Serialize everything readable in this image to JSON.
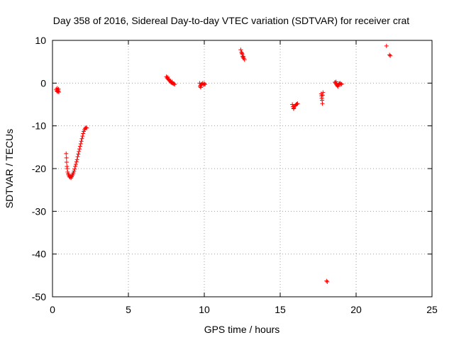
{
  "chart_data": {
    "type": "scatter",
    "title": "Day 358 of 2016, Sidereal Day-to-day VTEC variation (SDTVAR) for receiver crat",
    "xlabel": "GPS time / hours",
    "ylabel": "SDTVAR / TECUs",
    "xlim": [
      0,
      25
    ],
    "ylim": [
      -50,
      10
    ],
    "xticks": [
      "0",
      "5",
      "10",
      "15",
      "20",
      "25"
    ],
    "yticks": [
      "10",
      "0",
      "-10",
      "-20",
      "-30",
      "-40",
      "-50"
    ],
    "grid": true,
    "marker": "+",
    "color": "#ff0000",
    "series": [
      {
        "name": "SDTVAR",
        "points": [
          [
            0.25,
            -1.5
          ],
          [
            0.28,
            -1.8
          ],
          [
            0.3,
            -1.2
          ],
          [
            0.32,
            -2.0
          ],
          [
            0.35,
            -1.6
          ],
          [
            0.38,
            -1.9
          ],
          [
            0.4,
            -1.4
          ],
          [
            0.42,
            -2.1
          ],
          [
            0.9,
            -16.5
          ],
          [
            0.92,
            -17.5
          ],
          [
            0.93,
            -18.5
          ],
          [
            0.95,
            -19.5
          ],
          [
            0.97,
            -20.0
          ],
          [
            1.0,
            -20.8
          ],
          [
            1.03,
            -21.2
          ],
          [
            1.06,
            -21.5
          ],
          [
            1.1,
            -21.8
          ],
          [
            1.14,
            -22.0
          ],
          [
            1.18,
            -21.8
          ],
          [
            1.22,
            -22.2
          ],
          [
            1.26,
            -21.9
          ],
          [
            1.3,
            -21.6
          ],
          [
            1.34,
            -21.3
          ],
          [
            1.38,
            -21.0
          ],
          [
            1.42,
            -20.6
          ],
          [
            1.46,
            -20.1
          ],
          [
            1.5,
            -19.5
          ],
          [
            1.54,
            -19.0
          ],
          [
            1.58,
            -18.4
          ],
          [
            1.62,
            -17.9
          ],
          [
            1.66,
            -17.2
          ],
          [
            1.7,
            -16.6
          ],
          [
            1.74,
            -16.0
          ],
          [
            1.78,
            -15.4
          ],
          [
            1.82,
            -14.8
          ],
          [
            1.86,
            -14.2
          ],
          [
            1.9,
            -13.6
          ],
          [
            1.94,
            -13.0
          ],
          [
            1.98,
            -12.4
          ],
          [
            2.02,
            -11.8
          ],
          [
            2.06,
            -11.3
          ],
          [
            2.1,
            -10.9
          ],
          [
            2.15,
            -10.6
          ],
          [
            2.2,
            -10.4
          ],
          [
            2.25,
            -10.5
          ],
          [
            7.5,
            1.5
          ],
          [
            7.55,
            1.2
          ],
          [
            7.6,
            1.0
          ],
          [
            7.65,
            0.8
          ],
          [
            7.7,
            0.6
          ],
          [
            7.75,
            0.4
          ],
          [
            7.8,
            0.2
          ],
          [
            7.85,
            0.1
          ],
          [
            7.9,
            0.0
          ],
          [
            7.95,
            -0.1
          ],
          [
            8.0,
            -0.2
          ],
          [
            8.05,
            -0.3
          ],
          [
            7.58,
            1.4
          ],
          [
            7.68,
            0.9
          ],
          [
            7.78,
            0.5
          ],
          [
            7.88,
            0.3
          ],
          [
            9.7,
            0.0
          ],
          [
            9.72,
            -0.8
          ],
          [
            9.75,
            -0.5
          ],
          [
            9.8,
            -0.3
          ],
          [
            9.85,
            -0.2
          ],
          [
            9.9,
            0.0
          ],
          [
            9.95,
            -0.4
          ],
          [
            10.0,
            -0.1
          ],
          [
            10.05,
            -0.3
          ],
          [
            9.77,
            -1.0
          ],
          [
            12.4,
            7.8
          ],
          [
            12.45,
            7.2
          ],
          [
            12.5,
            6.8
          ],
          [
            12.52,
            6.3
          ],
          [
            12.55,
            6.0
          ],
          [
            12.6,
            5.8
          ],
          [
            12.65,
            5.5
          ],
          [
            12.48,
            7.0
          ],
          [
            12.58,
            6.2
          ],
          [
            15.8,
            -5.0
          ],
          [
            15.85,
            -5.5
          ],
          [
            15.9,
            -5.8
          ],
          [
            15.95,
            -5.4
          ],
          [
            16.0,
            -5.2
          ],
          [
            16.05,
            -5.0
          ],
          [
            16.1,
            -4.9
          ],
          [
            16.15,
            -4.8
          ],
          [
            15.88,
            -6.0
          ],
          [
            17.7,
            -2.5
          ],
          [
            17.72,
            -3.0
          ],
          [
            17.74,
            -3.5
          ],
          [
            17.76,
            -4.0
          ],
          [
            17.78,
            -4.8
          ],
          [
            17.8,
            -2.8
          ],
          [
            17.82,
            -2.2
          ],
          [
            18.05,
            -46.3
          ],
          [
            18.1,
            -46.5
          ],
          [
            18.6,
            0.2
          ],
          [
            18.65,
            0.0
          ],
          [
            18.7,
            -0.3
          ],
          [
            18.75,
            -0.5
          ],
          [
            18.8,
            -0.8
          ],
          [
            18.85,
            -0.4
          ],
          [
            18.9,
            -0.2
          ],
          [
            18.95,
            0.0
          ],
          [
            19.0,
            -0.3
          ],
          [
            19.05,
            -0.2
          ],
          [
            18.68,
            0.3
          ],
          [
            18.78,
            -0.6
          ],
          [
            18.88,
            -0.1
          ],
          [
            22.0,
            8.7
          ],
          [
            22.2,
            6.6
          ],
          [
            22.25,
            6.4
          ]
        ]
      }
    ]
  }
}
